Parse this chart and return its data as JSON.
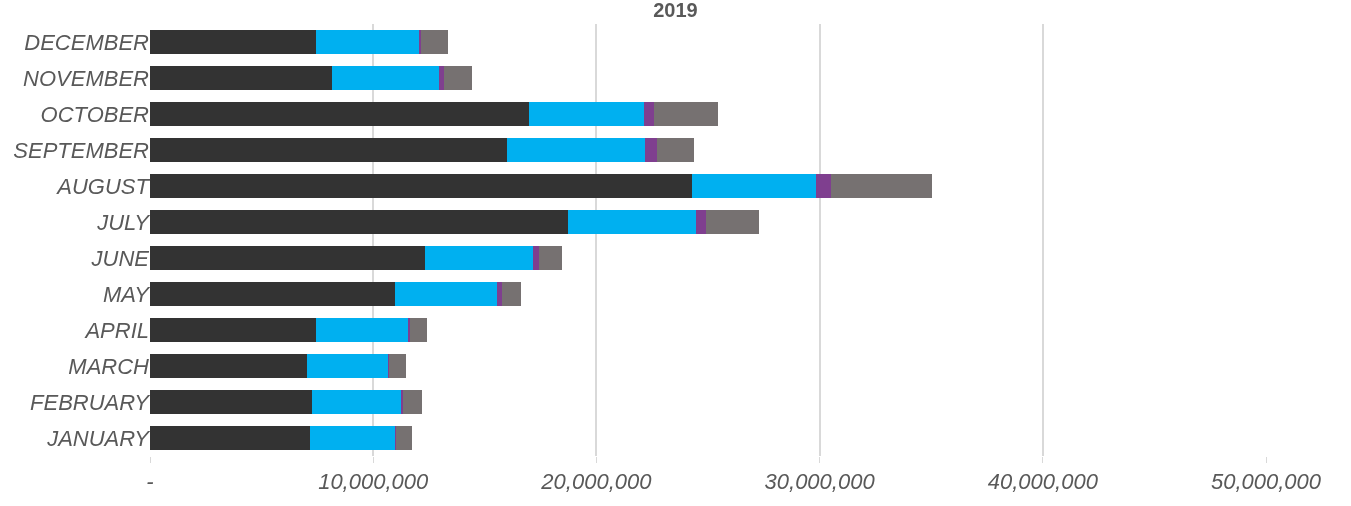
{
  "chart_data": {
    "type": "bar",
    "title": "2019",
    "orientation": "horizontal",
    "stacked": true,
    "categories": [
      "DECEMBER",
      "NOVEMBER",
      "OCTOBER",
      "SEPTEMBER",
      "AUGUST",
      "JULY",
      "JUNE",
      "MAY",
      "APRIL",
      "MARCH",
      "FEBRUARY",
      "JANUARY"
    ],
    "series": [
      {
        "color": "#333333",
        "values": [
          7450000,
          8140000,
          16990000,
          16000000,
          24280000,
          18740000,
          12300000,
          10990000,
          7430000,
          7030000,
          7240000,
          7150000
        ]
      },
      {
        "color": "#00b0f0",
        "values": [
          4640000,
          4830000,
          5150000,
          6180000,
          5580000,
          5720000,
          4870000,
          4570000,
          4160000,
          3640000,
          4050000,
          3840000
        ]
      },
      {
        "color": "#7f3f8f",
        "values": [
          70000,
          180000,
          430000,
          530000,
          650000,
          460000,
          280000,
          210000,
          40000,
          20000,
          40000,
          20000
        ]
      },
      {
        "color": "#767171",
        "values": [
          1200000,
          1290000,
          2900000,
          1660000,
          4520000,
          2370000,
          1010000,
          830000,
          780000,
          780000,
          850000,
          740000
        ]
      }
    ],
    "xlim": [
      0,
      50000000
    ],
    "xticks": [
      {
        "value": 0,
        "label": "-"
      },
      {
        "value": 10000000,
        "label": "10,000,000"
      },
      {
        "value": 20000000,
        "label": "20,000,000"
      },
      {
        "value": 30000000,
        "label": "30,000,000"
      },
      {
        "value": 40000000,
        "label": "40,000,000"
      },
      {
        "value": 50000000,
        "label": "50,000,000"
      }
    ],
    "grid": "x"
  }
}
